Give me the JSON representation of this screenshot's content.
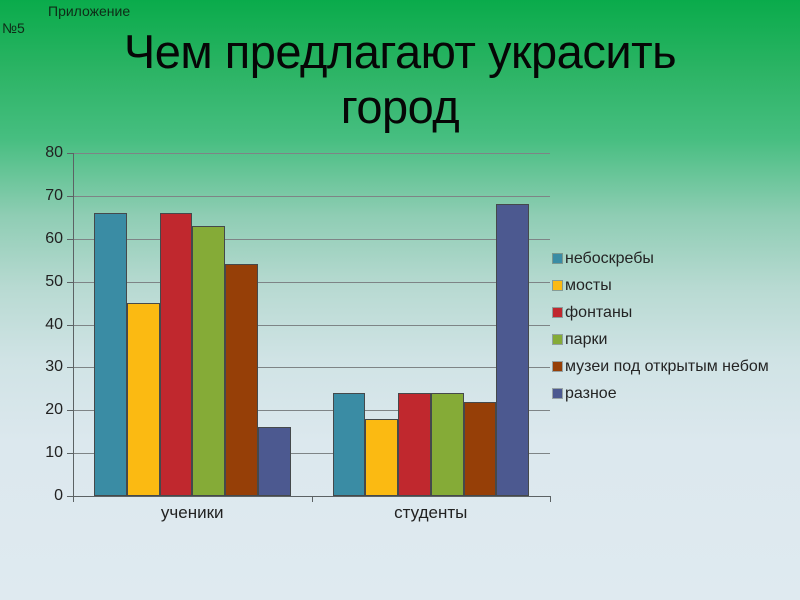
{
  "slide": {
    "appendix_line1": "Приложение",
    "appendix_line2": "№5",
    "title": "Чем предлагают украсить город"
  },
  "chart_data": {
    "type": "bar",
    "title": "Чем предлагают украсить город",
    "categories": [
      "ученики",
      "студенты"
    ],
    "series": [
      {
        "name": "небоскребы",
        "color": "#3a8ca4",
        "values": [
          66,
          24
        ]
      },
      {
        "name": "мосты",
        "color": "#fbba12",
        "values": [
          45,
          18
        ]
      },
      {
        "name": "фонтаны",
        "color": "#c0282e",
        "values": [
          66,
          24
        ]
      },
      {
        "name": "парки",
        "color": "#85ab37",
        "values": [
          63,
          24
        ]
      },
      {
        "name": "музеи под открытым небом",
        "color": "#963f07",
        "values": [
          54,
          22
        ]
      },
      {
        "name": "разное",
        "color": "#4c5990",
        "values": [
          16,
          68
        ]
      }
    ],
    "ylim": [
      0,
      80
    ],
    "ytick_step": 10,
    "grid": true,
    "legend_position": "right",
    "colors_note": {
      "background_top": "#0aab4b",
      "background_bottom": "#dfeaf0",
      "gridline": "#7e8486",
      "text": "#222222"
    }
  }
}
